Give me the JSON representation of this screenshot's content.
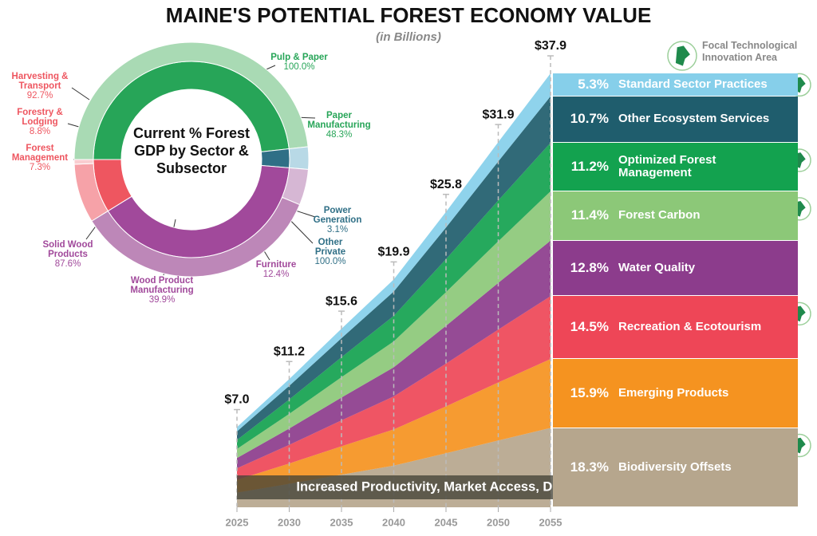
{
  "title": "MAINE'S POTENTIAL FOREST ECONOMY VALUE",
  "subtitle": "(in Billions)",
  "chart_data": [
    {
      "type": "donut",
      "center_label": "Current % Forest GDP by Sector & Subsector",
      "sectors": [
        {
          "name": "Paper Manufacturing",
          "value": 48.3,
          "value_label": "48.3%",
          "color": "#27a558",
          "subsectors": [
            {
              "name": "Pulp & Paper",
              "value": 100.0,
              "value_label": "100.0%",
              "color": "#a9dab4"
            }
          ]
        },
        {
          "name": "Power Generation",
          "value": 3.1,
          "value_label": "3.1%",
          "color": "#2f6f86",
          "subsectors": [
            {
              "name": "Other Private",
              "value": 100.0,
              "value_label": "100.0%",
              "color": "#b8d9e6"
            }
          ]
        },
        {
          "name": "Wood Product Manufacturing",
          "value": 39.9,
          "value_label": "39.9%",
          "color": "#a1499b",
          "subsectors": [
            {
              "name": "Furniture",
              "value": 12.4,
              "value_label": "12.4%",
              "color": "#d6b7d4"
            },
            {
              "name": "Solid Wood Products",
              "value": 87.6,
              "value_label": "87.6%",
              "color": "#bd87b8"
            }
          ]
        },
        {
          "name": "Forestry & Lodging",
          "value": 8.8,
          "value_label": "8.8%",
          "color": "#ee5660",
          "subsectors": [
            {
              "name": "Harvesting & Transport",
              "value": 92.7,
              "value_label": "92.7%",
              "color": "#f6a2a8"
            },
            {
              "name": "Forest Management",
              "value": 7.3,
              "value_label": "7.3%",
              "color": "#f9cdd0"
            }
          ]
        }
      ]
    },
    {
      "type": "stacked-area",
      "x": [
        2025,
        2030,
        2035,
        2040,
        2045,
        2050,
        2055
      ],
      "values": [
        7.0,
        11.2,
        15.6,
        19.9,
        25.8,
        31.9,
        37.9
      ],
      "value_labels": [
        "$7.0",
        "$11.2",
        "$15.6",
        "$19.9",
        "$25.8",
        "$31.9",
        "$37.9"
      ],
      "series": [
        {
          "name": "Standard Sector Practices",
          "value": 5.3,
          "value_label": "5.3%",
          "color": "#86cfea",
          "focal": true
        },
        {
          "name": "Other Ecosystem Services",
          "value": 10.7,
          "value_label": "10.7%",
          "color": "#1f5d6d",
          "focal": false
        },
        {
          "name": "Optimized Forest Management",
          "value": 11.2,
          "value_label": "11.2%",
          "color": "#13a24f",
          "focal": true
        },
        {
          "name": "Forest Carbon",
          "value": 11.4,
          "value_label": "11.4%",
          "color": "#8cc878",
          "focal": true
        },
        {
          "name": "Water Quality",
          "value": 12.8,
          "value_label": "12.8%",
          "color": "#8c3c8c",
          "focal": false
        },
        {
          "name": "Recreation & Ecotourism",
          "value": 14.5,
          "value_label": "14.5%",
          "color": "#ee4657",
          "focal": true
        },
        {
          "name": "Emerging Products",
          "value": 15.9,
          "value_label": "15.9%",
          "color": "#f59320",
          "focal": false
        },
        {
          "name": "Biodiversity Offsets",
          "value": 18.3,
          "value_label": "18.3%",
          "color": "#b6a68d",
          "focal": true
        }
      ],
      "annotation": "Increased Productivity, Market Access, Diversification, & Utilization",
      "legend": {
        "label": "Focal Technological Innovation Area"
      }
    }
  ]
}
